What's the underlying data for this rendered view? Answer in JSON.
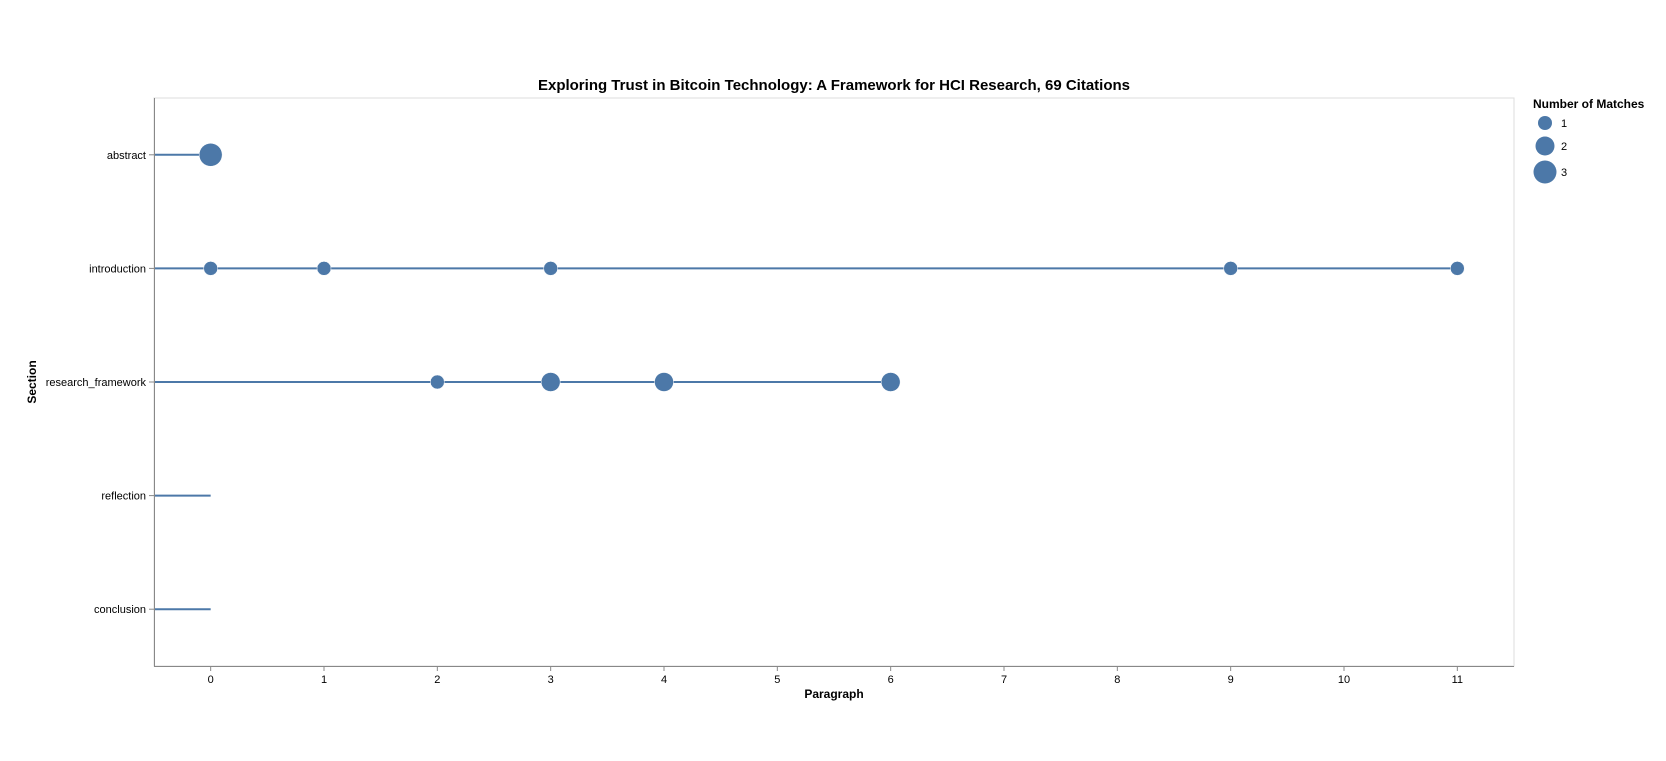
{
  "chart_data": {
    "type": "scatter",
    "title": "Exploring Trust in Bitcoin Technology: A Framework for HCI Research, 69 Citations",
    "xlabel": "Paragraph",
    "ylabel": "Section",
    "xlim": [
      -0.5,
      11.5
    ],
    "x_ticks": [
      "0",
      "1",
      "2",
      "3",
      "4",
      "5",
      "6",
      "7",
      "8",
      "9",
      "10",
      "11"
    ],
    "categories": [
      "abstract",
      "introduction",
      "research_framework",
      "reflection",
      "conclusion"
    ],
    "grid": false,
    "color": "#4c78a8",
    "legend": {
      "title": "Number of Matches",
      "placement": "top-right",
      "entries": [
        {
          "label": "1",
          "value": 1
        },
        {
          "label": "2",
          "value": 2
        },
        {
          "label": "3",
          "value": 3
        }
      ]
    },
    "lines": [
      {
        "section": "abstract",
        "x_end": 0
      },
      {
        "section": "introduction",
        "x_end": 11
      },
      {
        "section": "research_framework",
        "x_end": 6
      },
      {
        "section": "reflection",
        "x_end": 0
      },
      {
        "section": "conclusion",
        "x_end": 0
      }
    ],
    "points": [
      {
        "section": "abstract",
        "x": 0,
        "matches": 3
      },
      {
        "section": "introduction",
        "x": 0,
        "matches": 1
      },
      {
        "section": "introduction",
        "x": 1,
        "matches": 1
      },
      {
        "section": "introduction",
        "x": 3,
        "matches": 1
      },
      {
        "section": "introduction",
        "x": 9,
        "matches": 1
      },
      {
        "section": "introduction",
        "x": 11,
        "matches": 1
      },
      {
        "section": "research_framework",
        "x": 2,
        "matches": 1
      },
      {
        "section": "research_framework",
        "x": 3,
        "matches": 2
      },
      {
        "section": "research_framework",
        "x": 4,
        "matches": 2
      },
      {
        "section": "research_framework",
        "x": 6,
        "matches": 2
      }
    ]
  }
}
